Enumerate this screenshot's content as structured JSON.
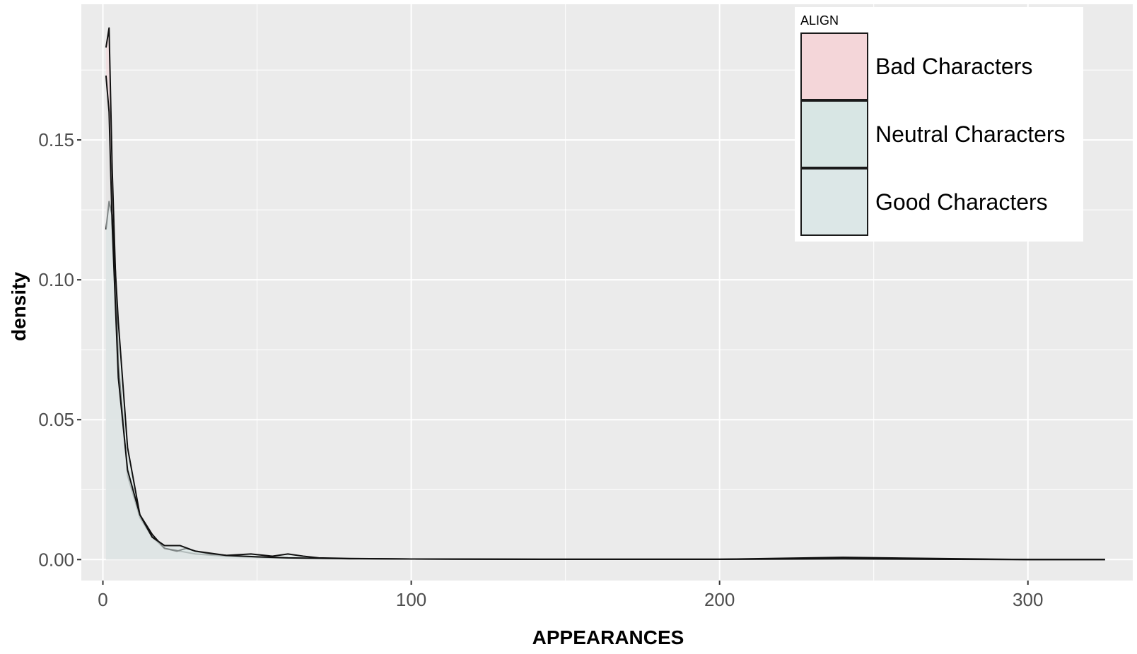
{
  "chart_data": {
    "type": "area",
    "subtype": "density",
    "title": "",
    "xlabel": "APPEARANCES",
    "ylabel": "density",
    "xlim": [
      -7,
      334
    ],
    "ylim": [
      -0.0075,
      0.1985
    ],
    "x_ticks": [
      0,
      100,
      200,
      300
    ],
    "x_tick_labels": [
      "0",
      "100",
      "200",
      "300"
    ],
    "y_ticks": [
      0.0,
      0.05,
      0.1,
      0.15
    ],
    "y_tick_labels": [
      "0.00",
      "0.05",
      "0.10",
      "0.15"
    ],
    "grid": true,
    "legend": {
      "title": "ALIGN",
      "placement": "top-right",
      "entries": [
        "Bad Characters",
        "Neutral Characters",
        "Good Characters"
      ]
    },
    "series": [
      {
        "name": "Bad Characters",
        "fill": "#f4d6d9",
        "x": [
          1,
          2,
          3,
          5,
          8,
          12,
          16,
          20,
          25,
          30,
          40,
          50,
          60,
          80,
          100,
          150,
          200,
          240,
          300,
          325
        ],
        "y": [
          0.183,
          0.19,
          0.14,
          0.07,
          0.03,
          0.015,
          0.008,
          0.004,
          0.003,
          0.002,
          0.0012,
          0.0008,
          0.0005,
          0.0003,
          0.0002,
          0.0001,
          0.0001,
          0.0008,
          0.0,
          0.0
        ]
      },
      {
        "name": "Neutral Characters",
        "fill": "#d8e6e4",
        "x": [
          1,
          2,
          3,
          5,
          8,
          12,
          16,
          20,
          24,
          27,
          30,
          35,
          40,
          48,
          55,
          60,
          65,
          70,
          80,
          100,
          150,
          200,
          240,
          300,
          325
        ],
        "y": [
          0.118,
          0.128,
          0.123,
          0.085,
          0.04,
          0.016,
          0.009,
          0.004,
          0.003,
          0.004,
          0.003,
          0.002,
          0.0015,
          0.002,
          0.0012,
          0.002,
          0.0012,
          0.0006,
          0.0004,
          0.0002,
          0.0001,
          0.0001,
          0.0002,
          0.0,
          0.0
        ]
      },
      {
        "name": "Good Characters",
        "fill": "#dce7e7",
        "x": [
          1,
          2,
          3,
          5,
          8,
          12,
          16,
          20,
          25,
          30,
          40,
          50,
          60,
          80,
          100,
          150,
          200,
          240,
          300,
          325
        ],
        "y": [
          0.173,
          0.16,
          0.12,
          0.065,
          0.032,
          0.016,
          0.008,
          0.005,
          0.005,
          0.003,
          0.0015,
          0.001,
          0.0006,
          0.0003,
          0.0002,
          0.0001,
          0.0001,
          0.0004,
          0.0,
          0.0
        ]
      }
    ]
  }
}
